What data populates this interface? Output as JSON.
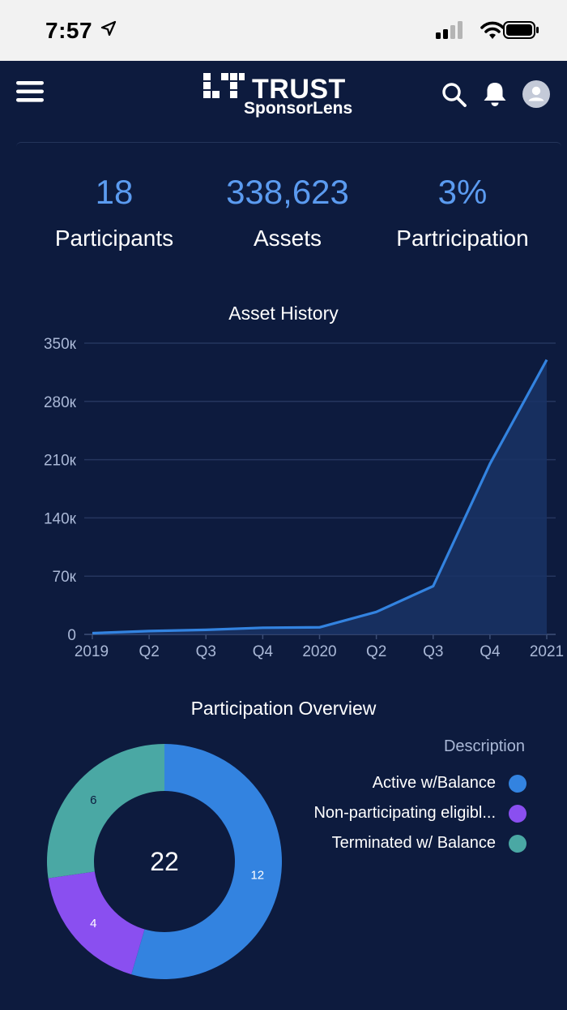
{
  "status_bar": {
    "time": "7:57"
  },
  "header": {
    "logo_title": "TRUST",
    "logo_subtitle": "SponsorLens",
    "icons": [
      "menu-icon",
      "search-icon",
      "bell-icon",
      "avatar-icon"
    ]
  },
  "metrics": [
    {
      "value": "18",
      "label": "Participants"
    },
    {
      "value": "338,623",
      "label": "Assets"
    },
    {
      "value": "3%",
      "label": "Partricipation"
    }
  ],
  "asset_history": {
    "title": "Asset History",
    "y_ticks": [
      "350к",
      "280к",
      "210к",
      "140к",
      "70к",
      "0"
    ],
    "x_ticks": [
      "2019",
      "Q2",
      "Q3",
      "Q4",
      "2020",
      "Q2",
      "Q3",
      "Q4",
      "2021"
    ]
  },
  "participation": {
    "title": "Participation Overview",
    "total": "22",
    "legend_title": "Description",
    "items": [
      {
        "label": "Active w/Balance",
        "value": "12",
        "color": "#3383e0"
      },
      {
        "label": "Non-participating eligibl...",
        "value": "4",
        "color": "#8a4ff0"
      },
      {
        "label": "Terminated w/ Balance",
        "value": "6",
        "color": "#4aa8a4"
      }
    ]
  },
  "chart_data": [
    {
      "type": "area",
      "title": "Asset History",
      "x": [
        "2019",
        "Q2",
        "Q3",
        "Q4",
        "2020",
        "Q2",
        "Q3",
        "Q4",
        "2021"
      ],
      "series": [
        {
          "values": [
            1500,
            4000,
            5500,
            8000,
            8500,
            27000,
            58000,
            205000,
            330000
          ]
        }
      ],
      "ylim": [
        0,
        350000
      ],
      "y_ticks": [
        0,
        70000,
        140000,
        210000,
        280000,
        350000
      ],
      "grid": true,
      "color": "#3383e0"
    },
    {
      "type": "pie",
      "title": "Participation Overview",
      "categories": [
        "Active w/Balance",
        "Non-participating eligibl...",
        "Terminated w/ Balance"
      ],
      "values": [
        12,
        4,
        6
      ],
      "colors": [
        "#3383e0",
        "#8a4ff0",
        "#4aa8a4"
      ],
      "total": 22,
      "legend": "right"
    }
  ]
}
